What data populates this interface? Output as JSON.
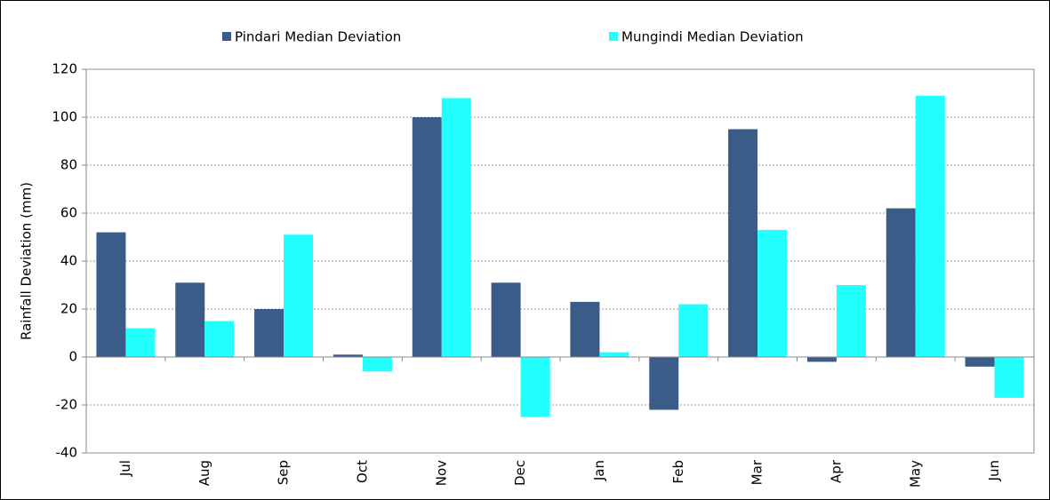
{
  "chart_data": {
    "type": "bar",
    "y_label": "Rainfall Deviation (mm)",
    "categories": [
      "Jul",
      "Aug",
      "Sep",
      "Oct",
      "Nov",
      "Dec",
      "Jan",
      "Feb",
      "Mar",
      "Apr",
      "May",
      "Jun"
    ],
    "series": [
      {
        "name": "Pindari Median Deviation",
        "color": "#3b5b88",
        "values": [
          52,
          31,
          20,
          1,
          100,
          31,
          23,
          -22,
          95,
          -2,
          62,
          -4
        ]
      },
      {
        "name": "Mungindi Median Deviation",
        "color": "#22ffff",
        "values": [
          12,
          15,
          51,
          -6,
          108,
          -25,
          2,
          22,
          53,
          30,
          109,
          -17
        ]
      }
    ],
    "ylim": [
      -40,
      120
    ],
    "yticks": [
      -40,
      -20,
      0,
      20,
      40,
      60,
      80,
      100,
      120
    ],
    "grid": true,
    "legend": "top"
  }
}
